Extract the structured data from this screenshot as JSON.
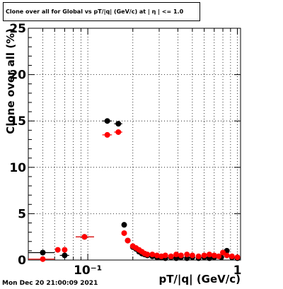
{
  "chart_data": {
    "type": "scatter",
    "title": "Clone  over all for Global vs pT/|q| (GeV/c) at |  η | <= 1.0",
    "xlabel": "pT/|q| (GeV/c)",
    "ylabel": "Clone  over all (%)",
    "x_scale": "log",
    "xlim": [
      0.04,
      1.05
    ],
    "ylim": [
      0,
      25
    ],
    "grid": true,
    "x_ticks": [
      {
        "value": 0.1,
        "label": "10⁻¹"
      },
      {
        "value": 1,
        "label": "1"
      }
    ],
    "y_ticks": [
      0,
      5,
      10,
      15,
      20,
      25
    ],
    "series": [
      {
        "color": "#000000",
        "points": [
          {
            "x": 0.05,
            "y": 0.8,
            "xerr": [
              0.04,
              0.06
            ]
          },
          {
            "x": 0.07,
            "y": 0.5,
            "xerr": [
              0.065,
              0.075
            ]
          },
          {
            "x": 0.095,
            "y": 2.5,
            "xerr": [
              0.083,
              0.11
            ]
          },
          {
            "x": 0.135,
            "y": 15.0,
            "xerr": [
              0.125,
              0.145
            ]
          },
          {
            "x": 0.16,
            "y": 14.7,
            "xerr": [
              0.15,
              0.17
            ]
          },
          {
            "x": 0.175,
            "y": 3.8
          },
          {
            "x": 0.185,
            "y": 2.1
          },
          {
            "x": 0.2,
            "y": 1.4
          },
          {
            "x": 0.21,
            "y": 1.2
          },
          {
            "x": 0.22,
            "y": 0.9
          },
          {
            "x": 0.23,
            "y": 0.7
          },
          {
            "x": 0.24,
            "y": 0.6
          },
          {
            "x": 0.25,
            "y": 0.5
          },
          {
            "x": 0.27,
            "y": 0.4
          },
          {
            "x": 0.29,
            "y": 0.3
          },
          {
            "x": 0.31,
            "y": 0.3
          },
          {
            "x": 0.33,
            "y": 0.2
          },
          {
            "x": 0.36,
            "y": 0.3
          },
          {
            "x": 0.39,
            "y": 0.2
          },
          {
            "x": 0.42,
            "y": 0.3
          },
          {
            "x": 0.46,
            "y": 0.2
          },
          {
            "x": 0.5,
            "y": 0.3
          },
          {
            "x": 0.55,
            "y": 0.2
          },
          {
            "x": 0.6,
            "y": 0.3
          },
          {
            "x": 0.65,
            "y": 0.2
          },
          {
            "x": 0.7,
            "y": 0.3
          },
          {
            "x": 0.78,
            "y": 0.3
          },
          {
            "x": 0.85,
            "y": 1.0
          },
          {
            "x": 0.92,
            "y": 0.3
          },
          {
            "x": 1.0,
            "y": 0.2
          }
        ]
      },
      {
        "color": "#ff0000",
        "points": [
          {
            "x": 0.05,
            "y": 0.1,
            "xerr": [
              0.04,
              0.06
            ]
          },
          {
            "x": 0.063,
            "y": 1.1
          },
          {
            "x": 0.07,
            "y": 1.1
          },
          {
            "x": 0.095,
            "y": 2.5,
            "xerr": [
              0.083,
              0.11
            ]
          },
          {
            "x": 0.135,
            "y": 13.5,
            "xerr": [
              0.125,
              0.145
            ]
          },
          {
            "x": 0.16,
            "y": 13.8,
            "xerr": [
              0.15,
              0.17
            ]
          },
          {
            "x": 0.175,
            "y": 2.9
          },
          {
            "x": 0.185,
            "y": 2.1
          },
          {
            "x": 0.2,
            "y": 1.5
          },
          {
            "x": 0.21,
            "y": 1.3
          },
          {
            "x": 0.22,
            "y": 1.1
          },
          {
            "x": 0.23,
            "y": 0.9
          },
          {
            "x": 0.24,
            "y": 0.7
          },
          {
            "x": 0.25,
            "y": 0.6
          },
          {
            "x": 0.27,
            "y": 0.6
          },
          {
            "x": 0.29,
            "y": 0.5
          },
          {
            "x": 0.31,
            "y": 0.4
          },
          {
            "x": 0.33,
            "y": 0.5
          },
          {
            "x": 0.36,
            "y": 0.4
          },
          {
            "x": 0.39,
            "y": 0.6
          },
          {
            "x": 0.42,
            "y": 0.5
          },
          {
            "x": 0.46,
            "y": 0.6
          },
          {
            "x": 0.5,
            "y": 0.5
          },
          {
            "x": 0.55,
            "y": 0.4
          },
          {
            "x": 0.6,
            "y": 0.5
          },
          {
            "x": 0.65,
            "y": 0.6
          },
          {
            "x": 0.7,
            "y": 0.5
          },
          {
            "x": 0.75,
            "y": 0.4
          },
          {
            "x": 0.8,
            "y": 0.8
          },
          {
            "x": 0.85,
            "y": 0.5
          },
          {
            "x": 0.92,
            "y": 0.4
          },
          {
            "x": 1.0,
            "y": 0.3
          }
        ]
      }
    ]
  },
  "footer": {
    "timestamp": "Mon Dec 20 21:00:09 2021"
  }
}
